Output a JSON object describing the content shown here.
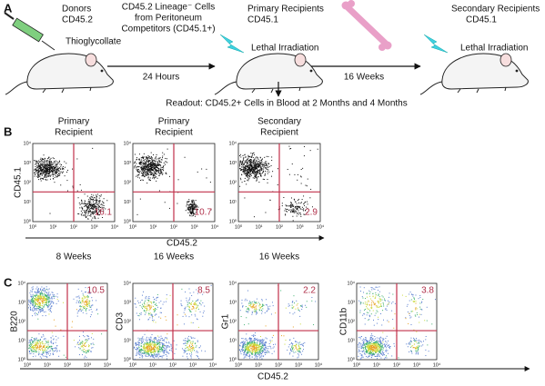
{
  "panel_a": {
    "label": "A",
    "donors": {
      "title": "Donors",
      "strain": "CD45.2",
      "treatment": "Thioglycollate"
    },
    "cells": [
      "CD45.2 Lineage⁻ Cells",
      "from Peritoneum",
      "Competitors (CD45.1+)"
    ],
    "step1": "24 Hours",
    "primary": {
      "title": "Primary Recipients",
      "strain": "CD45.1",
      "treatment": "Lethal Irradiation"
    },
    "step2": "16 Weeks",
    "secondary": {
      "title": "Secondary Recipients",
      "strain": "CD45.1",
      "treatment": "Lethal Irradiation"
    },
    "readout": "Readout: CD45.2+ Cells in Blood at 2 Months and 4 Months"
  },
  "axis_ticks": [
    "10⁰",
    "10¹",
    "10²",
    "10³",
    "10⁴"
  ],
  "panel_b": {
    "label": "B",
    "y_label": "CD45.1",
    "x_label": "CD45.2",
    "plots": [
      {
        "title": [
          "Primary",
          "Recipient"
        ],
        "percent": "16.1",
        "time": "8 Weeks"
      },
      {
        "title": [
          "Primary",
          "Recipient"
        ],
        "percent": "10.7",
        "time": "16 Weeks"
      },
      {
        "title": [
          "Secondary",
          "Recipient"
        ],
        "percent": "2.9",
        "time": "16 Weeks"
      }
    ]
  },
  "panel_c": {
    "label": "C",
    "x_label": "CD45.2",
    "plots": [
      {
        "y_label": "B220",
        "percent": "10.5"
      },
      {
        "y_label": "CD3",
        "percent": "8.5"
      },
      {
        "y_label": "Gr1",
        "percent": "2.2"
      },
      {
        "y_label": "CD11b",
        "percent": "3.8"
      }
    ]
  }
}
